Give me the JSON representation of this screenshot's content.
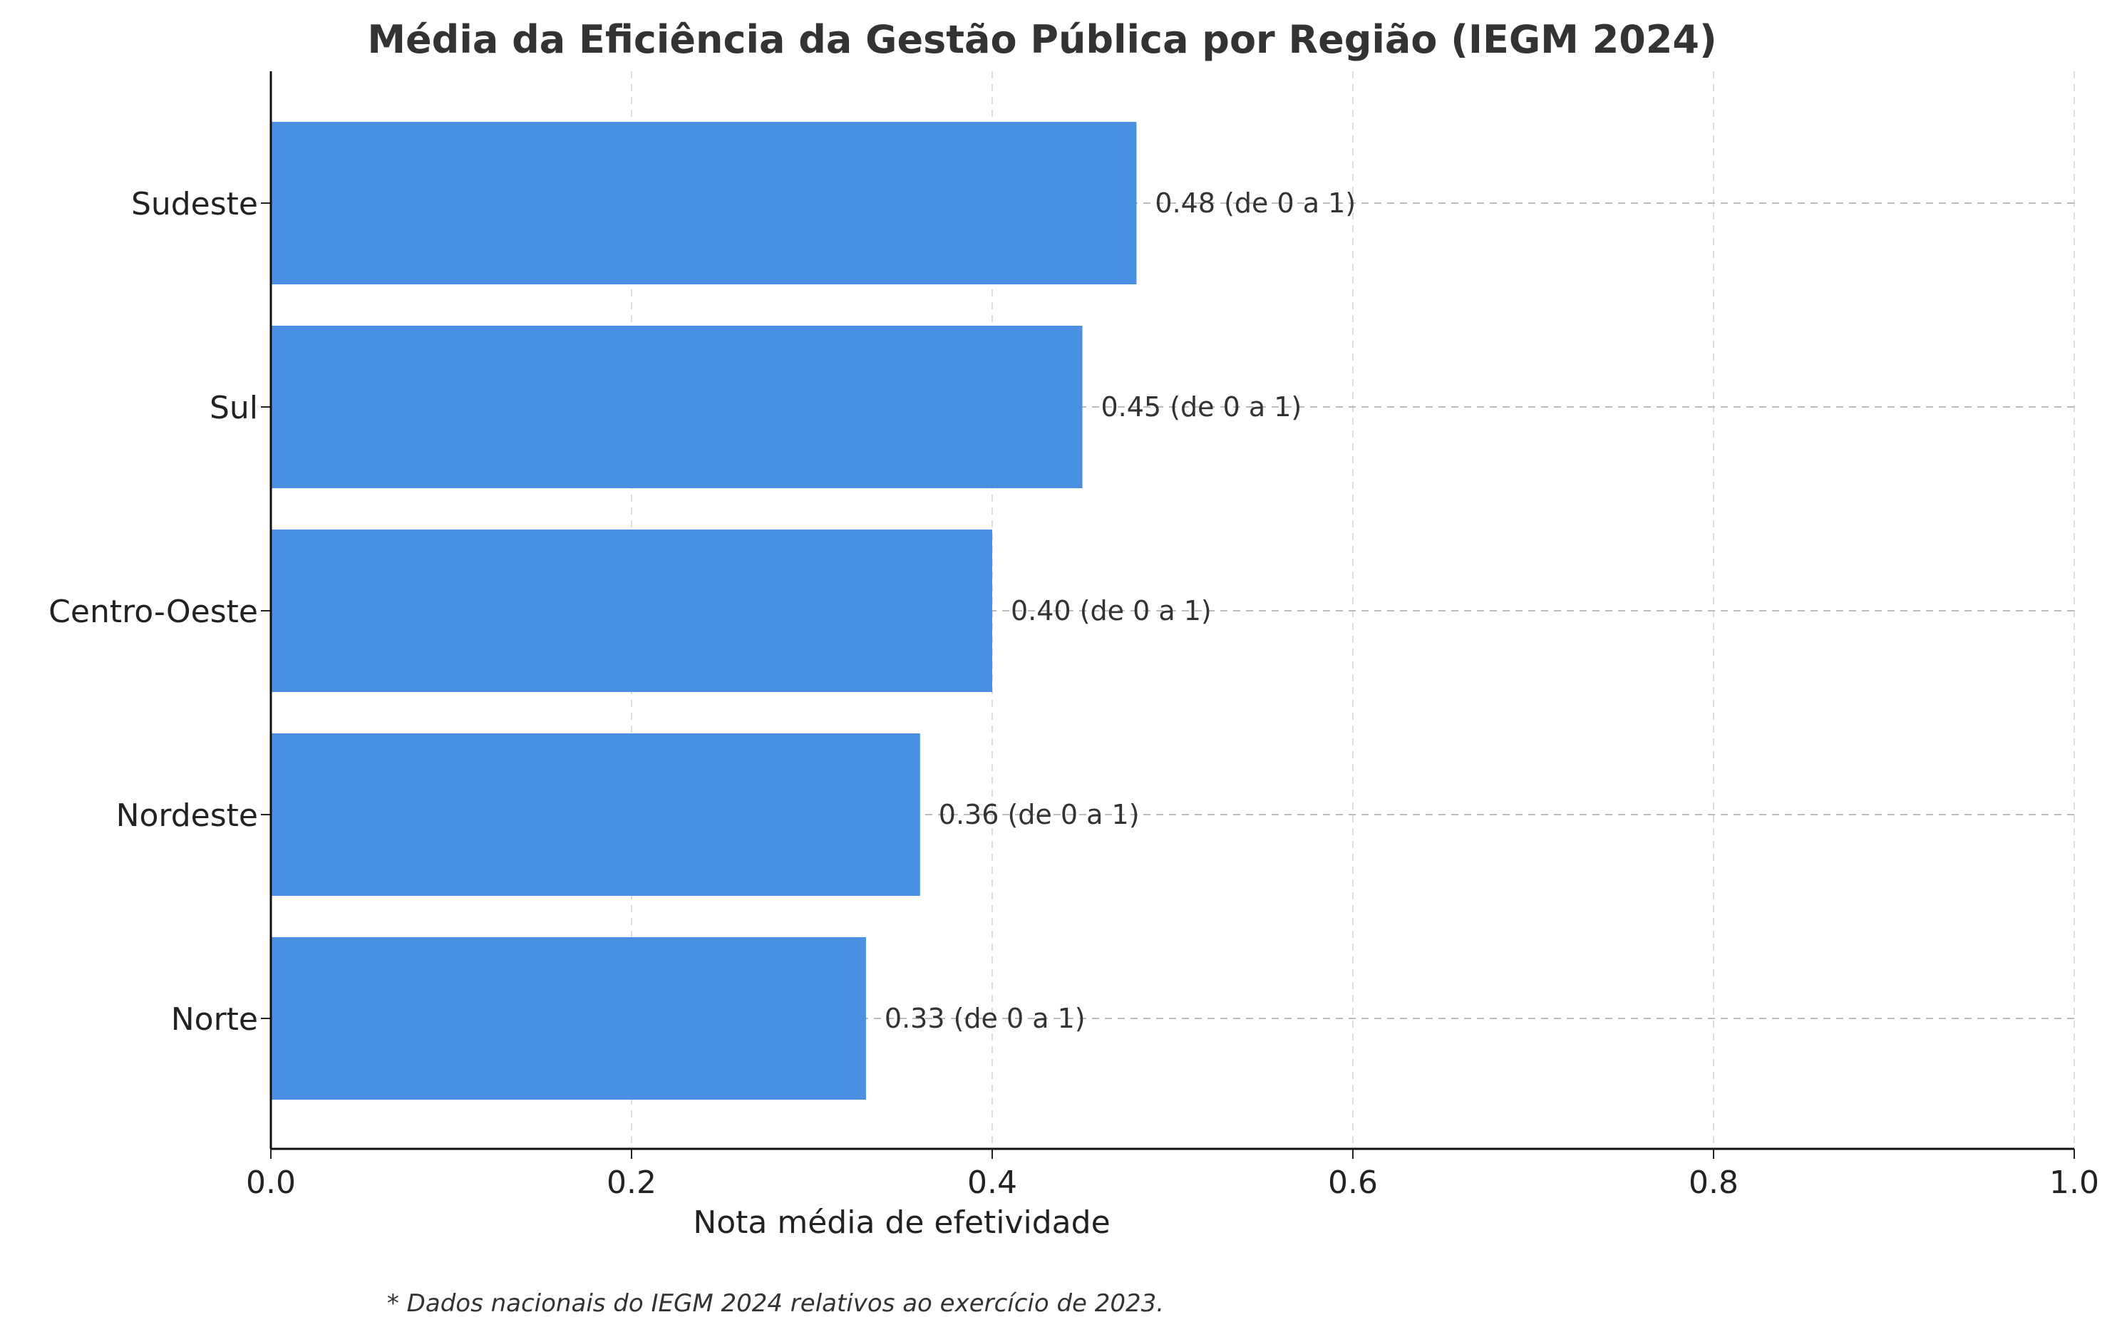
{
  "chart_data": {
    "type": "bar",
    "orientation": "horizontal",
    "title": "Média da Eficiência da Gestão Pública por Região (IEGM 2024)",
    "xlabel": "Nota média de efetividade",
    "ylabel": "",
    "xlim": [
      0,
      1
    ],
    "xticks": [
      "0.0",
      "0.2",
      "0.4",
      "0.6",
      "0.8",
      "1.0"
    ],
    "xtick_values": [
      0,
      0.2,
      0.4,
      0.6,
      0.8,
      1.0
    ],
    "categories": [
      "Sudeste",
      "Sul",
      "Centro-Oeste",
      "Nordeste",
      "Norte"
    ],
    "values": [
      0.48,
      0.45,
      0.4,
      0.36,
      0.33
    ],
    "data_labels": [
      "0.48 (de 0 a 1)",
      "0.45 (de 0 a 1)",
      "0.40 (de 0 a 1)",
      "0.36 (de 0 a 1)",
      "0.33 (de 0 a 1)"
    ],
    "grid": true,
    "bar_color": "#4a90e2",
    "footnote": "* Dados nacionais do IEGM 2024 relativos ao exercício de 2023."
  }
}
